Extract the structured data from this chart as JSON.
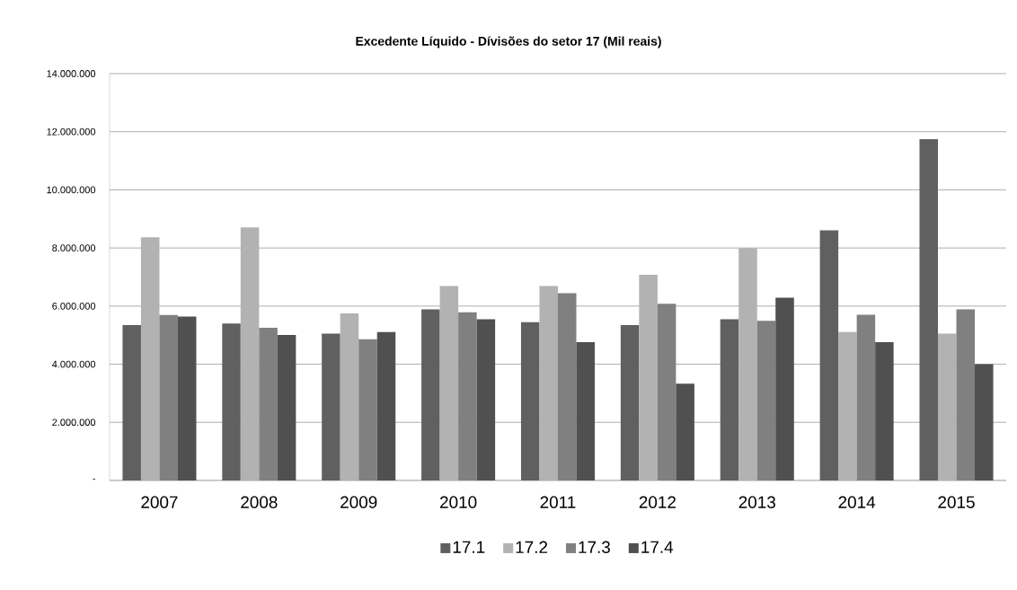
{
  "chart_data": {
    "type": "bar",
    "title": "Excedente Líquido - Dívisões do setor 17 (Mil reais)",
    "categories": [
      "2007",
      "2008",
      "2009",
      "2010",
      "2011",
      "2012",
      "2013",
      "2014",
      "2015"
    ],
    "series": [
      {
        "name": "17.1",
        "color": "#606060",
        "values": [
          5350000,
          5400000,
          5050000,
          5890000,
          5450000,
          5350000,
          5550000,
          8610000,
          11740000
        ]
      },
      {
        "name": "17.2",
        "color": "#b2b2b2",
        "values": [
          8370000,
          8710000,
          5750000,
          6690000,
          6690000,
          7080000,
          8000000,
          5110000,
          5050000
        ]
      },
      {
        "name": "17.3",
        "color": "#808080",
        "values": [
          5690000,
          5250000,
          4860000,
          5790000,
          6440000,
          6080000,
          5490000,
          5700000,
          5890000
        ]
      },
      {
        "name": "17.4",
        "color": "#505050",
        "values": [
          5640000,
          5010000,
          5110000,
          5550000,
          4760000,
          3330000,
          6290000,
          4760000,
          4000000
        ]
      }
    ],
    "ylim": [
      0,
      14000000
    ],
    "yticks": [
      {
        "value": 0,
        "label": "-"
      },
      {
        "value": 2000000,
        "label": "2.000.000"
      },
      {
        "value": 4000000,
        "label": "4.000.000"
      },
      {
        "value": 6000000,
        "label": "6.000.000"
      },
      {
        "value": 8000000,
        "label": "8.000.000"
      },
      {
        "value": 10000000,
        "label": "10.000.000"
      },
      {
        "value": 12000000,
        "label": "12.000.000"
      },
      {
        "value": 14000000,
        "label": "14.000.000"
      }
    ],
    "grid": "y",
    "legend": "bottom"
  }
}
